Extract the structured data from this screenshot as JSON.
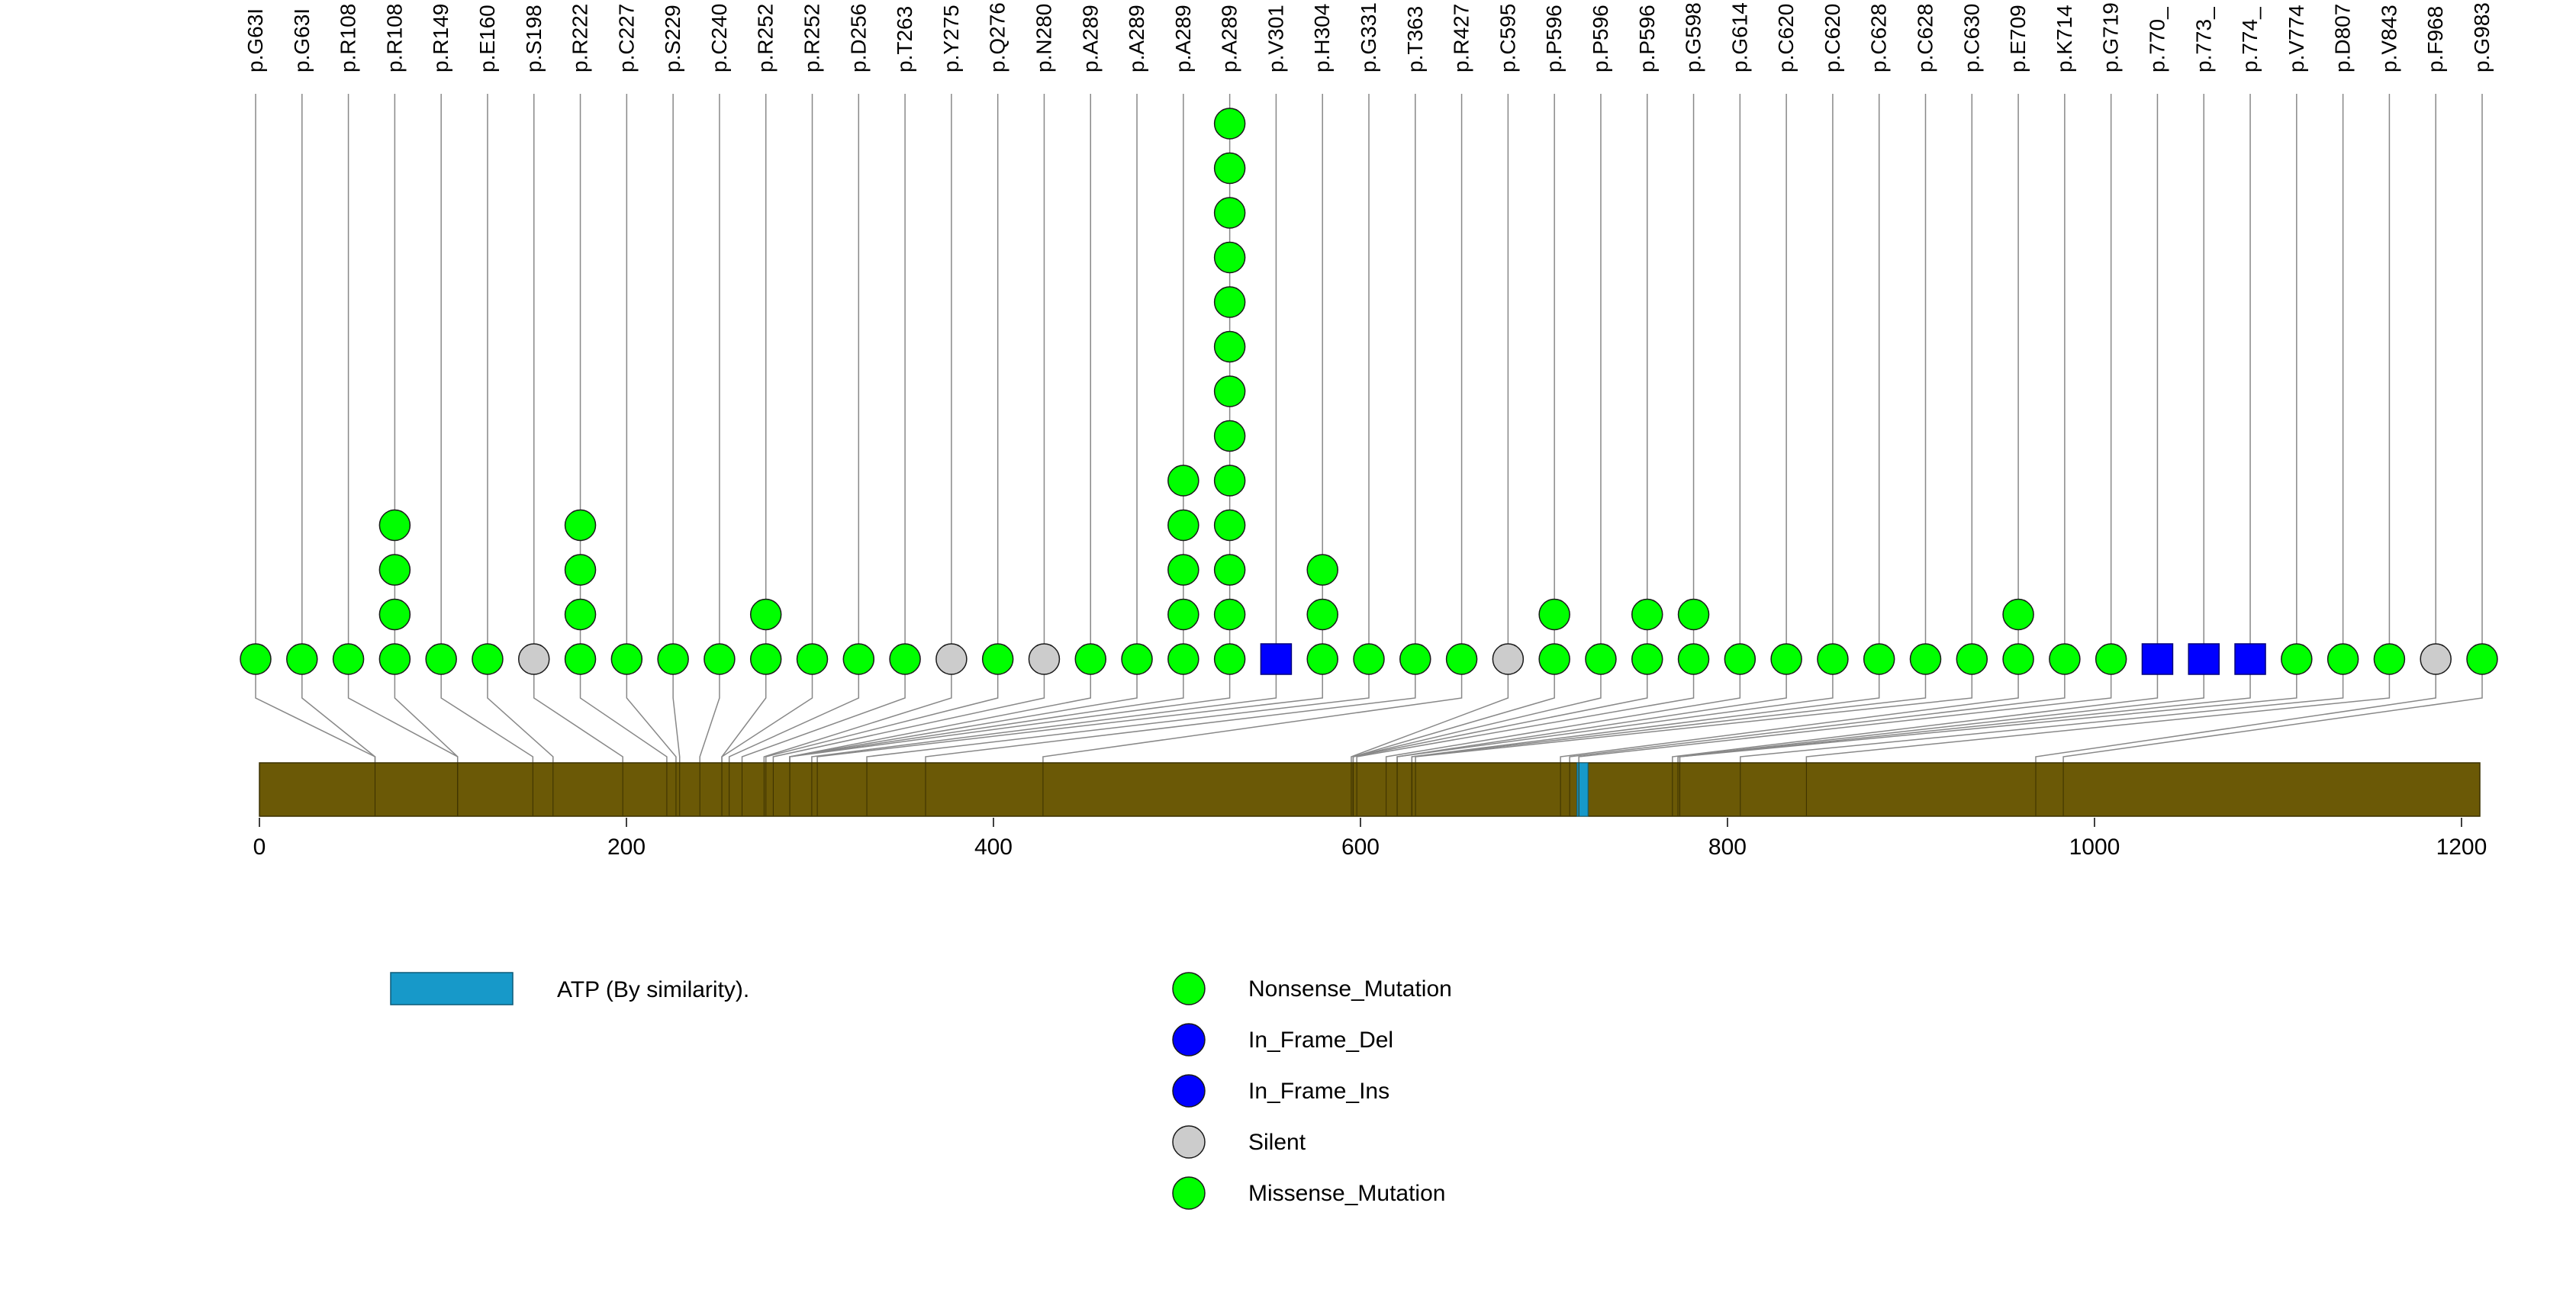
{
  "chart_data": {
    "type": "lollipop",
    "colors": {
      "protein_bar": "#6b5906",
      "domain": "#1799c9",
      "missense": "#00ff00",
      "nonsense": "#00ff00",
      "in_frame": "#0000ff",
      "silent": "#cccccc",
      "stick": "#888888"
    },
    "protein_length": 1210,
    "x_axis": {
      "ticks": [
        0,
        200,
        400,
        600,
        800,
        1000,
        1200
      ],
      "range": [
        0,
        1210
      ]
    },
    "domains": [
      {
        "label": "ATP (By similarity).",
        "start": 718,
        "end": 724
      }
    ],
    "mutations": [
      {
        "label": "p.G63I",
        "pos": 63,
        "count": 1,
        "type": "Missense_Mutation"
      },
      {
        "label": "p.G63I",
        "pos": 63,
        "count": 1,
        "type": "Missense_Mutation"
      },
      {
        "label": "p.R108",
        "pos": 108,
        "count": 1,
        "type": "Missense_Mutation"
      },
      {
        "label": "p.R108",
        "pos": 108,
        "count": 4,
        "type": "Missense_Mutation"
      },
      {
        "label": "p.R149",
        "pos": 149,
        "count": 1,
        "type": "Missense_Mutation"
      },
      {
        "label": "p.E160",
        "pos": 160,
        "count": 1,
        "type": "Missense_Mutation"
      },
      {
        "label": "p.S198",
        "pos": 198,
        "count": 1,
        "type": "Silent"
      },
      {
        "label": "p.R222",
        "pos": 222,
        "count": 4,
        "type": "Missense_Mutation"
      },
      {
        "label": "p.C227",
        "pos": 227,
        "count": 1,
        "type": "Missense_Mutation"
      },
      {
        "label": "p.S229",
        "pos": 229,
        "count": 1,
        "type": "Missense_Mutation"
      },
      {
        "label": "p.C240",
        "pos": 240,
        "count": 1,
        "type": "Missense_Mutation"
      },
      {
        "label": "p.R252",
        "pos": 252,
        "count": 2,
        "type": "Missense_Mutation"
      },
      {
        "label": "p.R252",
        "pos": 252,
        "count": 1,
        "type": "Missense_Mutation"
      },
      {
        "label": "p.D256",
        "pos": 256,
        "count": 1,
        "type": "Missense_Mutation"
      },
      {
        "label": "p.T263",
        "pos": 263,
        "count": 1,
        "type": "Missense_Mutation"
      },
      {
        "label": "p.Y275",
        "pos": 275,
        "count": 1,
        "type": "Silent"
      },
      {
        "label": "p.Q276",
        "pos": 276,
        "count": 1,
        "type": "Missense_Mutation"
      },
      {
        "label": "p.N280",
        "pos": 280,
        "count": 1,
        "type": "Silent"
      },
      {
        "label": "p.A289",
        "pos": 289,
        "count": 1,
        "type": "Missense_Mutation"
      },
      {
        "label": "p.A289",
        "pos": 289,
        "count": 1,
        "type": "Missense_Mutation"
      },
      {
        "label": "p.A289",
        "pos": 289,
        "count": 5,
        "type": "Missense_Mutation"
      },
      {
        "label": "p.A289",
        "pos": 289,
        "count": 13,
        "type": "Missense_Mutation"
      },
      {
        "label": "p.V301",
        "pos": 301,
        "count": 1,
        "type": "In_Frame_Del"
      },
      {
        "label": "p.H304",
        "pos": 304,
        "count": 3,
        "type": "Missense_Mutation"
      },
      {
        "label": "p.G331",
        "pos": 331,
        "count": 1,
        "type": "Missense_Mutation"
      },
      {
        "label": "p.T363",
        "pos": 363,
        "count": 1,
        "type": "Missense_Mutation"
      },
      {
        "label": "p.R427",
        "pos": 427,
        "count": 1,
        "type": "Missense_Mutation"
      },
      {
        "label": "p.C595",
        "pos": 595,
        "count": 1,
        "type": "Silent"
      },
      {
        "label": "p.P596",
        "pos": 596,
        "count": 2,
        "type": "Missense_Mutation"
      },
      {
        "label": "p.P596",
        "pos": 596,
        "count": 1,
        "type": "Missense_Mutation"
      },
      {
        "label": "p.P596",
        "pos": 596,
        "count": 2,
        "type": "Missense_Mutation"
      },
      {
        "label": "p.G598",
        "pos": 598,
        "count": 2,
        "type": "Missense_Mutation"
      },
      {
        "label": "p.G614",
        "pos": 614,
        "count": 1,
        "type": "Missense_Mutation"
      },
      {
        "label": "p.C620",
        "pos": 620,
        "count": 1,
        "type": "Missense_Mutation"
      },
      {
        "label": "p.C620",
        "pos": 620,
        "count": 1,
        "type": "Missense_Mutation"
      },
      {
        "label": "p.C628",
        "pos": 628,
        "count": 1,
        "type": "Missense_Mutation"
      },
      {
        "label": "p.C628",
        "pos": 628,
        "count": 1,
        "type": "Missense_Mutation"
      },
      {
        "label": "p.C630",
        "pos": 630,
        "count": 1,
        "type": "Missense_Mutation"
      },
      {
        "label": "p.E709",
        "pos": 709,
        "count": 2,
        "type": "Missense_Mutation"
      },
      {
        "label": "p.K714",
        "pos": 714,
        "count": 1,
        "type": "Missense_Mutation"
      },
      {
        "label": "p.G719",
        "pos": 719,
        "count": 1,
        "type": "Missense_Mutation"
      },
      {
        "label": "p.770_",
        "pos": 770,
        "count": 1,
        "type": "In_Frame_Ins"
      },
      {
        "label": "p.773_",
        "pos": 773,
        "count": 1,
        "type": "In_Frame_Ins"
      },
      {
        "label": "p.774_",
        "pos": 774,
        "count": 1,
        "type": "In_Frame_Ins"
      },
      {
        "label": "p.V774",
        "pos": 774,
        "count": 1,
        "type": "Missense_Mutation"
      },
      {
        "label": "p.D807",
        "pos": 807,
        "count": 1,
        "type": "Missense_Mutation"
      },
      {
        "label": "p.V843",
        "pos": 843,
        "count": 1,
        "type": "Missense_Mutation"
      },
      {
        "label": "p.F968",
        "pos": 968,
        "count": 1,
        "type": "Silent"
      },
      {
        "label": "p.G983",
        "pos": 983,
        "count": 1,
        "type": "Missense_Mutation"
      }
    ],
    "legend": {
      "domain_label": "ATP (By similarity).",
      "mutation_types": [
        {
          "label": "Nonsense_Mutation",
          "color": "#00ff00"
        },
        {
          "label": "In_Frame_Del",
          "color": "#0000ff"
        },
        {
          "label": "In_Frame_Ins",
          "color": "#0000ff"
        },
        {
          "label": "Silent",
          "color": "#cccccc"
        },
        {
          "label": "Missense_Mutation",
          "color": "#00ff00"
        }
      ]
    }
  }
}
